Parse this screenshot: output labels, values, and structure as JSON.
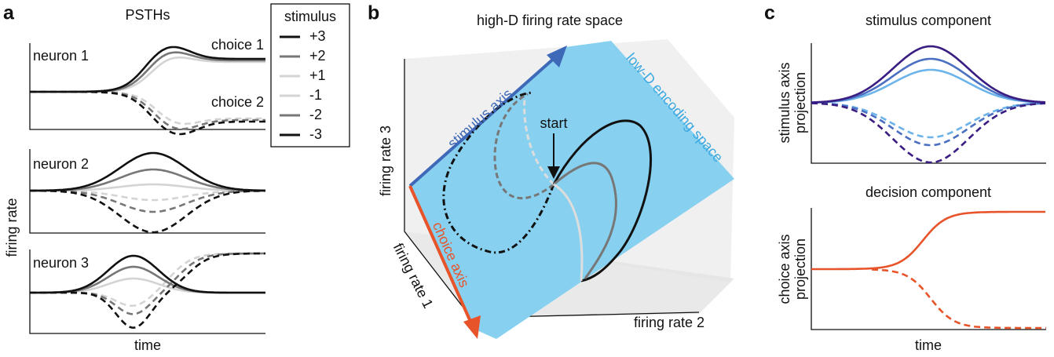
{
  "panel_a": {
    "label": "a",
    "title": "PSTHs",
    "neurons": [
      "neuron 1",
      "neuron 2",
      "neuron 3"
    ],
    "choice_1": "choice 1",
    "choice_2": "choice 2",
    "y_label": "firing rate",
    "x_label": "time"
  },
  "legend": {
    "title": "stimulus",
    "entries": [
      "+3",
      "+2",
      "+1",
      "-1",
      "-2",
      "-3"
    ]
  },
  "panel_b": {
    "label": "b",
    "title": "high-D firing rate space",
    "stimulus_axis": "stimulus axis",
    "encoding_space": "low-D encoding space",
    "axis_3": "firing rate 3",
    "start": "start",
    "choice_axis": "choice axis",
    "axis_1": "firing rate 1",
    "axis_2": "firing rate 2"
  },
  "panel_c": {
    "label": "c",
    "title_1": "stimulus component",
    "y_label_1": [
      "stimulus axis",
      "projection"
    ],
    "title_2": "decision component",
    "y_label_2": [
      "choice axis",
      "projection"
    ],
    "x_label": "time"
  }
}
